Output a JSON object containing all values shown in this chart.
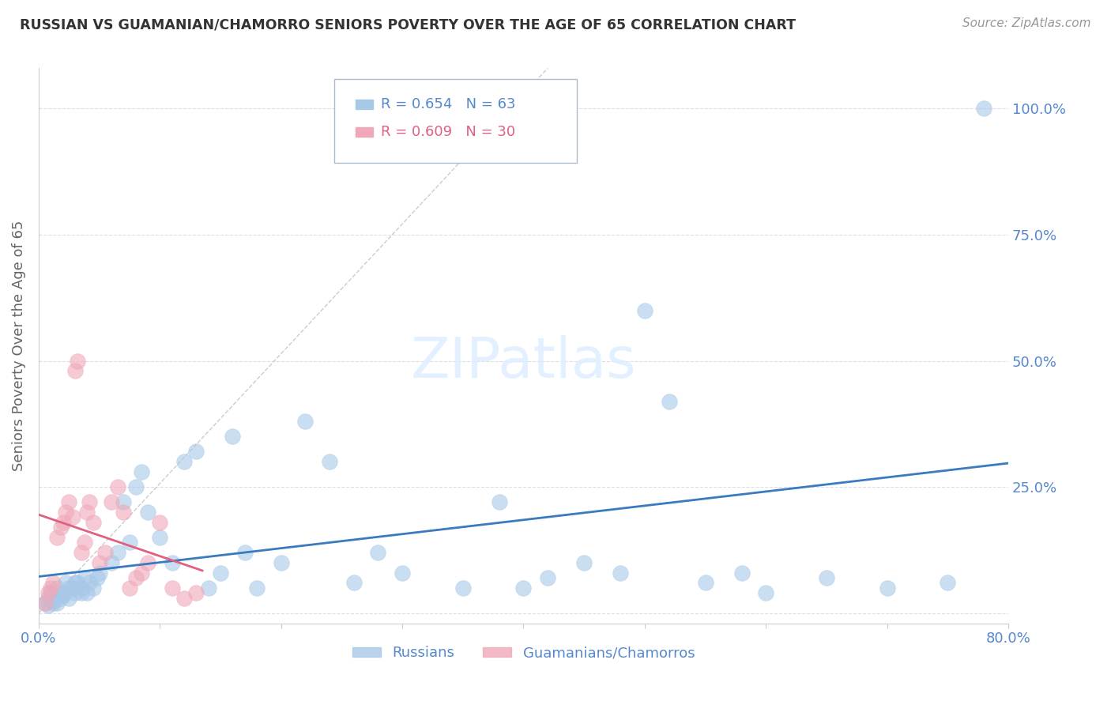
{
  "title": "RUSSIAN VS GUAMANIAN/CHAMORRO SENIORS POVERTY OVER THE AGE OF 65 CORRELATION CHART",
  "source": "Source: ZipAtlas.com",
  "ylabel": "Seniors Poverty Over the Age of 65",
  "xmin": 0.0,
  "xmax": 0.8,
  "ymin": -0.02,
  "ymax": 1.08,
  "ytick_positions": [
    0.0,
    0.25,
    0.5,
    0.75,
    1.0
  ],
  "ytick_labels": [
    "",
    "25.0%",
    "50.0%",
    "75.0%",
    "100.0%"
  ],
  "xtick_positions": [
    0.0,
    0.1,
    0.2,
    0.3,
    0.4,
    0.5,
    0.6,
    0.7,
    0.8
  ],
  "xtick_labels": [
    "0.0%",
    "",
    "",
    "",
    "",
    "",
    "",
    "",
    "80.0%"
  ],
  "blue_scatter_color": "#a8c8e8",
  "pink_scatter_color": "#f0a8b8",
  "blue_line_color": "#3a7bbf",
  "pink_line_color": "#e06080",
  "diag_color": "#cccccc",
  "r_blue": 0.654,
  "n_blue": 63,
  "r_pink": 0.609,
  "n_pink": 30,
  "legend_label_blue": "Russians",
  "legend_label_pink": "Guamanians/Chamorros",
  "tick_color": "#5588cc",
  "watermark_color": "#ddeeff",
  "russians_x": [
    0.005,
    0.008,
    0.01,
    0.012,
    0.015,
    0.018,
    0.02,
    0.022,
    0.025,
    0.028,
    0.03,
    0.032,
    0.035,
    0.038,
    0.04,
    0.042,
    0.045,
    0.048,
    0.05,
    0.015,
    0.008,
    0.012,
    0.02,
    0.025,
    0.03,
    0.035,
    0.06,
    0.065,
    0.07,
    0.075,
    0.08,
    0.085,
    0.09,
    0.1,
    0.11,
    0.12,
    0.13,
    0.14,
    0.15,
    0.16,
    0.17,
    0.18,
    0.2,
    0.22,
    0.24,
    0.26,
    0.28,
    0.3,
    0.35,
    0.38,
    0.4,
    0.42,
    0.45,
    0.48,
    0.5,
    0.52,
    0.55,
    0.58,
    0.6,
    0.65,
    0.7,
    0.75,
    0.78
  ],
  "russians_y": [
    0.02,
    0.03,
    0.04,
    0.02,
    0.05,
    0.03,
    0.04,
    0.06,
    0.03,
    0.05,
    0.04,
    0.06,
    0.05,
    0.07,
    0.04,
    0.06,
    0.05,
    0.07,
    0.08,
    0.02,
    0.015,
    0.025,
    0.035,
    0.05,
    0.06,
    0.04,
    0.1,
    0.12,
    0.22,
    0.14,
    0.25,
    0.28,
    0.2,
    0.15,
    0.1,
    0.3,
    0.32,
    0.05,
    0.08,
    0.35,
    0.12,
    0.05,
    0.1,
    0.38,
    0.3,
    0.06,
    0.12,
    0.08,
    0.05,
    0.22,
    0.05,
    0.07,
    0.1,
    0.08,
    0.6,
    0.42,
    0.06,
    0.08,
    0.04,
    0.07,
    0.05,
    0.06,
    1.0
  ],
  "guamanians_x": [
    0.005,
    0.008,
    0.01,
    0.012,
    0.015,
    0.018,
    0.02,
    0.022,
    0.025,
    0.028,
    0.03,
    0.032,
    0.035,
    0.038,
    0.04,
    0.042,
    0.045,
    0.05,
    0.055,
    0.06,
    0.065,
    0.07,
    0.075,
    0.08,
    0.085,
    0.09,
    0.1,
    0.11,
    0.12,
    0.13
  ],
  "guamanians_y": [
    0.02,
    0.04,
    0.05,
    0.06,
    0.15,
    0.17,
    0.18,
    0.2,
    0.22,
    0.19,
    0.48,
    0.5,
    0.12,
    0.14,
    0.2,
    0.22,
    0.18,
    0.1,
    0.12,
    0.22,
    0.25,
    0.2,
    0.05,
    0.07,
    0.08,
    0.1,
    0.18,
    0.05,
    0.03,
    0.04
  ]
}
